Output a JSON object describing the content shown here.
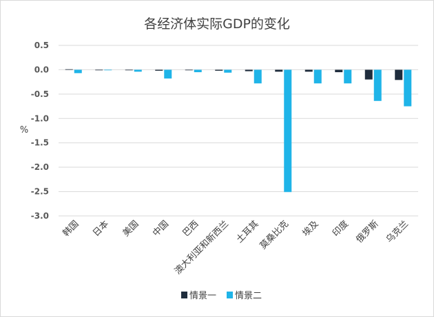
{
  "chart_data": {
    "type": "bar",
    "title": "各经济体实际GDP的变化",
    "ylabel": "%",
    "xlabel": "",
    "ylim": [
      -3.0,
      0.5
    ],
    "yticks": [
      "0.5",
      "0.0",
      "-0.5",
      "-1.0",
      "-1.5",
      "-2.0",
      "-2.5",
      "-3.0"
    ],
    "grid": true,
    "legend_position": "bottom",
    "categories": [
      "韩国",
      "日本",
      "美国",
      "中国",
      "巴西",
      "澳大利亚和新西兰",
      "土耳其",
      "莫桑比克",
      "埃及",
      "印度",
      "俄罗斯",
      "乌克兰"
    ],
    "series": [
      {
        "name": "情景一",
        "color": "#1f2d3d",
        "values": [
          0.01,
          -0.01,
          -0.01,
          -0.02,
          -0.01,
          -0.02,
          -0.03,
          -0.04,
          -0.04,
          -0.05,
          -0.2,
          -0.21
        ]
      },
      {
        "name": "情景二",
        "color": "#1fb4e8",
        "values": [
          -0.07,
          -0.01,
          -0.04,
          -0.18,
          -0.05,
          -0.06,
          -0.28,
          -2.51,
          -0.28,
          -0.28,
          -0.64,
          -0.75
        ]
      }
    ]
  }
}
